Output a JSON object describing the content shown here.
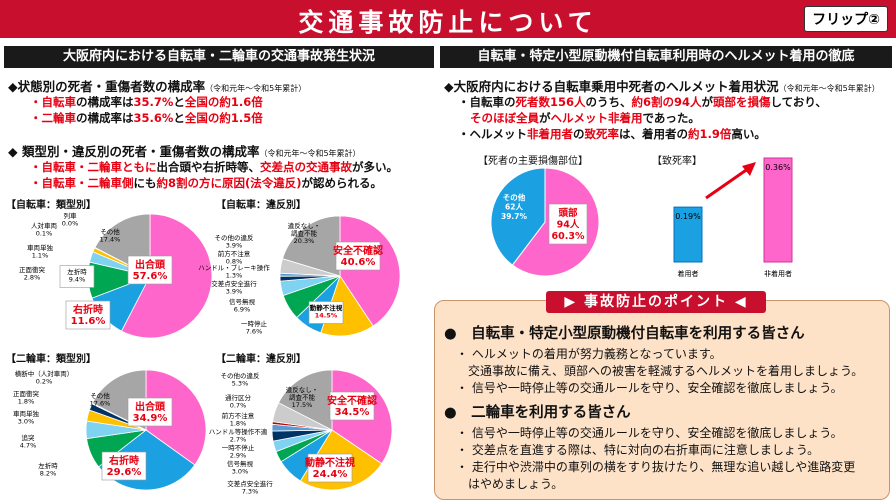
{
  "header": {
    "title": "交通事故防止について",
    "flip": "フリップ②"
  },
  "left": {
    "heading": "大阪府内における自転車・二輪車の交通事故発生状況",
    "s1_title": "◆状態別の死者・重傷者数の構成率",
    "s1_period": "（令和元年〜令和5年累計）",
    "s1_b1_a": "・自転車",
    "s1_b1_b": "の構成率は",
    "s1_b1_c": "35.7%",
    "s1_b1_d": "と",
    "s1_b1_e": "全国の約1.6倍",
    "s1_b2_a": "・二輪車",
    "s1_b2_b": "の構成率は",
    "s1_b2_c": "35.6%",
    "s1_b2_d": "と",
    "s1_b2_e": "全国の約1.5倍",
    "s2_title": "◆ 類型別・違反別の死者・重傷者数の構成率",
    "s2_period": "（令和元年〜令和5年累計）",
    "s2_b1_a": "・自転車・二輪車ともに",
    "s2_b1_b": "出合頭や右折時等、",
    "s2_b1_c": "交差点の交通事故",
    "s2_b1_d": "が多い。",
    "s2_b2_a": "・自転車・二輪車側",
    "s2_b2_b": "にも",
    "s2_b2_c": "約8割の方に原因(法令違反)",
    "s2_b2_d": "が認められる。"
  },
  "right": {
    "heading": "自転車・特定小型原動機付自転車利用時のヘルメット着用の徹底",
    "r_title": "◆大阪府内における自転車乗用中死者のヘルメット着用状況",
    "r_period": "（令和元年〜令和5年累計）",
    "r_b1_a": "・自転車の",
    "r_b1_b": "死者数156人",
    "r_b1_c": "のうち、",
    "r_b1_d": "約6割の94人",
    "r_b1_e": "が",
    "r_b1_f": "頭部を損傷",
    "r_b1_g": "しており、",
    "r_b1_h": "そのほぼ全員",
    "r_b1_i": "が",
    "r_b1_j": "ヘルメット非着用",
    "r_b1_k": "であった。",
    "r_b2_a": "・ヘルメット",
    "r_b2_b": "非着用者",
    "r_b2_c": "の",
    "r_b2_d": "致死率",
    "r_b2_e": "は、着用者の",
    "r_b2_f": "約1.9倍",
    "r_b2_g": "高い。",
    "injury_label": "【死者の主要損傷部位】",
    "fatality_label": "【致死率】"
  },
  "points": {
    "title": "事故防止のポイント",
    "h1": "●　自転車・特定小型原動機付自転車を利用する皆さん",
    "p1a": "・ ヘルメットの着用が努力義務となっています。",
    "p1b": "交通事故に備え、頭部への被害を軽減するヘルメットを着用しましょう。",
    "p1c": "・ 信号や一時停止等の交通ルールを守り、安全確認を徹底しましょう。",
    "h2": "●　二輪車を利用する皆さん",
    "p2a": "・ 信号や一時停止等の交通ルールを守り、安全確認を徹底しましょう。",
    "p2b": "・ 交差点を直進する際は、特に対向の右折車両に注意しましょう。",
    "p2c": "・ 走行中や渋滞中の車列の横をすり抜けたり、無理な追い越しや進路変更",
    "p2d": "はやめましょう。"
  },
  "chart_data": [
    {
      "type": "pie",
      "title": "【自転車：類型別】",
      "slices": [
        {
          "label": "出合頭",
          "value": 57.6,
          "color": "#ff66cc"
        },
        {
          "label": "右折時",
          "value": 11.6,
          "color": "#1ba1e2"
        },
        {
          "label": "左折時",
          "value": 9.4,
          "color": "#00a651"
        },
        {
          "label": "正面衝突",
          "value": 2.8,
          "color": "#7fd2f0"
        },
        {
          "label": "車両単独",
          "value": 1.1,
          "color": "#ffc000"
        },
        {
          "label": "人対車両",
          "value": 0.1,
          "color": "#003366"
        },
        {
          "label": "列車",
          "value": 0.0,
          "color": "#999999"
        },
        {
          "label": "その他",
          "value": 17.4,
          "color": "#a6a6a6"
        }
      ],
      "display": [
        {
          "name": "出合頭",
          "pct": "57.6%"
        },
        {
          "name": "右折時",
          "pct": "11.6%"
        },
        {
          "name": "左折時",
          "pct": "9.4%"
        },
        {
          "name": "正面衝突",
          "pct": "2.8%"
        },
        {
          "name": "車両単独",
          "pct": "1.1%"
        },
        {
          "name": "人対車両",
          "pct": "0.1%"
        },
        {
          "name": "列車",
          "pct": "0.0%"
        },
        {
          "name": "その他",
          "pct": "17.4%"
        }
      ]
    },
    {
      "type": "pie",
      "title": "【自転車：違反別】",
      "slices": [
        {
          "label": "安全不確認",
          "value": 40.6,
          "color": "#ff66cc"
        },
        {
          "label": "動静不注視",
          "value": 14.5,
          "color": "#ffc000"
        },
        {
          "label": "一時停止",
          "value": 7.6,
          "color": "#1ba1e2"
        },
        {
          "label": "信号無視",
          "value": 6.9,
          "color": "#00a651"
        },
        {
          "label": "交差点安全進行",
          "value": 3.9,
          "color": "#7fd2f0"
        },
        {
          "label": "ハンドル・ブレーキ操作",
          "value": 1.3,
          "color": "#003366"
        },
        {
          "label": "前方不注意",
          "value": 0.8,
          "color": "#5b9bd5"
        },
        {
          "label": "その他の違反",
          "value": 3.9,
          "color": "#cccccc"
        },
        {
          "label": "違反なし・調査不能",
          "value": 20.3,
          "color": "#a6a6a6"
        }
      ],
      "display": [
        {
          "name": "安全不確認",
          "pct": "40.6%"
        },
        {
          "name": "動静不注視",
          "pct": "14.5%"
        },
        {
          "name": "一時停止",
          "pct": "7.6%"
        },
        {
          "name": "信号無視",
          "pct": "6.9%"
        },
        {
          "name": "交差点安全進行",
          "pct": "3.9%"
        },
        {
          "name": "ハンドル・ブレーキ操作",
          "pct": "1.3%"
        },
        {
          "name": "前方不注意",
          "pct": "0.8%"
        },
        {
          "name": "その他の違反",
          "pct": "3.9%"
        },
        {
          "name": "違反なし・",
          "sub": "調査不能",
          "pct": "20.3%"
        }
      ]
    },
    {
      "type": "pie",
      "title": "【二輪車：類型別】",
      "slices": [
        {
          "label": "出合頭",
          "value": 34.9,
          "color": "#ff66cc"
        },
        {
          "label": "右折時",
          "value": 29.6,
          "color": "#1ba1e2"
        },
        {
          "label": "左折時",
          "value": 8.2,
          "color": "#00a651"
        },
        {
          "label": "追突",
          "value": 4.7,
          "color": "#7fd2f0"
        },
        {
          "label": "車両単独",
          "value": 3.0,
          "color": "#ffc000"
        },
        {
          "label": "正面衝突",
          "value": 1.8,
          "color": "#003366"
        },
        {
          "label": "横断中（人対車両）",
          "value": 0.2,
          "color": "#5b9bd5"
        },
        {
          "label": "その他",
          "value": 17.6,
          "color": "#a6a6a6"
        }
      ],
      "display": [
        {
          "name": "出合頭",
          "pct": "34.9%"
        },
        {
          "name": "右折時",
          "pct": "29.6%"
        },
        {
          "name": "左折時",
          "pct": "8.2%"
        },
        {
          "name": "追突",
          "pct": "4.7%"
        },
        {
          "name": "車両単独",
          "pct": "3.0%"
        },
        {
          "name": "正面衝突",
          "pct": "1.8%"
        },
        {
          "name": "横断中（人対車両）",
          "pct": "0.2%"
        },
        {
          "name": "その他",
          "pct": "17.6%"
        }
      ]
    },
    {
      "type": "pie",
      "title": "【二輪車：違反別】",
      "slices": [
        {
          "label": "安全不確認",
          "value": 34.5,
          "color": "#ff66cc"
        },
        {
          "label": "動静不注視",
          "value": 24.4,
          "color": "#ffc000"
        },
        {
          "label": "交差点安全進行",
          "value": 7.3,
          "color": "#1ba1e2"
        },
        {
          "label": "信号無視",
          "value": 3.0,
          "color": "#00a651"
        },
        {
          "label": "一時不停止",
          "value": 2.9,
          "color": "#7fd2f0"
        },
        {
          "label": "ハンドル等操作不適",
          "value": 2.7,
          "color": "#003366"
        },
        {
          "label": "前方不注意",
          "value": 1.8,
          "color": "#5b9bd5"
        },
        {
          "label": "通行区分",
          "value": 0.7,
          "color": "#c00000"
        },
        {
          "label": "その他の違反",
          "value": 5.3,
          "color": "#cccccc"
        },
        {
          "label": "違反なし・調査不能",
          "value": 17.5,
          "color": "#a6a6a6"
        }
      ],
      "display": [
        {
          "name": "安全不確認",
          "pct": "34.5%"
        },
        {
          "name": "動静不注視",
          "pct": "24.4%"
        },
        {
          "name": "交差点安全進行",
          "pct": "7.3%"
        },
        {
          "name": "信号無視",
          "pct": "3.0%"
        },
        {
          "name": "一時不停止",
          "pct": "2.9%"
        },
        {
          "name": "ハンドル等操作不適",
          "pct": "2.7%"
        },
        {
          "name": "前方不注意",
          "pct": "1.8%"
        },
        {
          "name": "通行区分",
          "pct": "0.7%"
        },
        {
          "name": "その他の違反",
          "pct": "5.3%"
        },
        {
          "name": "違反なし・",
          "sub": "調査不能",
          "pct": "17.5%"
        }
      ]
    },
    {
      "type": "pie",
      "title": "【死者の主要損傷部位】",
      "slices": [
        {
          "label": "頭部",
          "value": 60.3,
          "count": 94,
          "color": "#ff66cc"
        },
        {
          "label": "その他",
          "value": 39.7,
          "count": 62,
          "color": "#1ba1e2"
        }
      ],
      "display": [
        {
          "name": "頭部",
          "count": "94人",
          "pct": "60.3%"
        },
        {
          "name": "その他",
          "count": "62人",
          "pct": "39.7%"
        }
      ]
    },
    {
      "type": "bar",
      "title": "【致死率】",
      "categories": [
        "着用者",
        "非着用者"
      ],
      "values": [
        0.19,
        0.36
      ],
      "labels": [
        "0.19%",
        "0.36%"
      ]
    }
  ]
}
